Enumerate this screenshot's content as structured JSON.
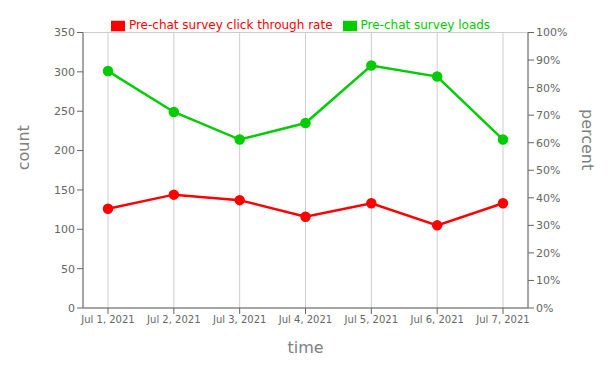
{
  "chart_data": {
    "type": "line",
    "xlabel": "time",
    "ylabel": "count",
    "y2label": "percent",
    "categories": [
      "Jul 1, 2021",
      "Jul 2, 2021",
      "Jul 3, 2021",
      "Jul 4, 2021",
      "Jul 5, 2021",
      "Jul 6, 2021",
      "Jul 7, 2021"
    ],
    "series": [
      {
        "name": "Pre-chat survey click through rate",
        "color": "#ff0000",
        "marker": "circle",
        "values": [
          126,
          144,
          137,
          116,
          133,
          105,
          133
        ]
      },
      {
        "name": "Pre-chat survey loads",
        "color": "#00cc00",
        "marker": "circle",
        "values": [
          301,
          249,
          214,
          235,
          308,
          294,
          214
        ]
      }
    ],
    "ylim": [
      0,
      350
    ],
    "yticks": [
      0,
      50,
      100,
      150,
      200,
      250,
      300,
      350
    ],
    "y2lim": [
      0,
      1.0
    ],
    "y2ticks": [
      {
        "value": 0,
        "label": "0%"
      },
      {
        "value": 0.1,
        "label": "10%"
      },
      {
        "value": 0.2,
        "label": "20%"
      },
      {
        "value": 0.3,
        "label": "30%"
      },
      {
        "value": 0.4,
        "label": "40%"
      },
      {
        "value": 0.5,
        "label": "50%"
      },
      {
        "value": 0.6,
        "label": "60%"
      },
      {
        "value": 0.7,
        "label": "70%"
      },
      {
        "value": 0.8,
        "label": "80%"
      },
      {
        "value": 0.9,
        "label": "90%"
      },
      {
        "value": 1.0,
        "label": "100%"
      }
    ],
    "grid": true,
    "legend": "top"
  }
}
